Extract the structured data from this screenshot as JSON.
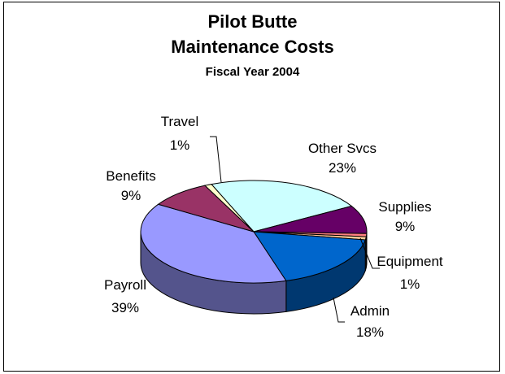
{
  "chart_data": {
    "type": "pie",
    "title": "Pilot Butte",
    "subtitle": "Maintenance Costs",
    "caption": "Fiscal Year 2004",
    "slices": [
      {
        "label": "Other Svcs",
        "value": 23,
        "display": "23%",
        "color": "#ccffff"
      },
      {
        "label": "Supplies",
        "value": 9,
        "display": "9%",
        "color": "#660066"
      },
      {
        "label": "",
        "value": 1,
        "display": "",
        "color": "#ff8080"
      },
      {
        "label": "Equipment",
        "value": 1,
        "display": "1%",
        "color": "#ffcc99"
      },
      {
        "label": "Admin",
        "value": 18,
        "display": "18%",
        "color": "#0066cc"
      },
      {
        "label": "Payroll",
        "value": 39,
        "display": "39%",
        "color": "#9999ff"
      },
      {
        "label": "Benefits",
        "value": 9,
        "display": "9%",
        "color": "#993366"
      },
      {
        "label": "Travel",
        "value": 1,
        "display": "1%",
        "color": "#ffffcc"
      }
    ]
  }
}
